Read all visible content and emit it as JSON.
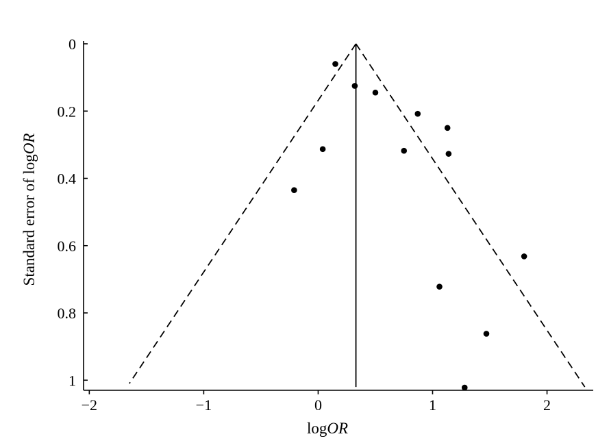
{
  "chart_data": {
    "type": "scatter",
    "subtype": "funnel-plot",
    "title": "",
    "xlabel": {
      "prefix": "log",
      "italic": "OR"
    },
    "ylabel": {
      "prefix": "Standard error of log",
      "italic": "OR"
    },
    "xlim": [
      -2.05,
      2.38
    ],
    "ylim": [
      0,
      1.03
    ],
    "y_inverted": true,
    "grid": false,
    "legend": "none",
    "x_ticks": [
      {
        "value": -2,
        "label": "−2"
      },
      {
        "value": -1,
        "label": "−1"
      },
      {
        "value": 0,
        "label": "0"
      },
      {
        "value": 1,
        "label": "1"
      },
      {
        "value": 2,
        "label": "2"
      }
    ],
    "y_ticks": [
      {
        "value": 0,
        "label": "0"
      },
      {
        "value": 0.2,
        "label": "0.2"
      },
      {
        "value": 0.4,
        "label": "0.4"
      },
      {
        "value": 0.6,
        "label": "0.6"
      },
      {
        "value": 0.8,
        "label": "0.8"
      },
      {
        "value": 1,
        "label": "1"
      }
    ],
    "pooled_estimate": 0.33,
    "pooled_line_range": [
      0,
      1.02
    ],
    "confidence_limits": {
      "apex": [
        0.33,
        0
      ],
      "left_end": [
        -1.65,
        1.01
      ],
      "right_end": [
        2.33,
        1.02
      ],
      "style": "dashed"
    },
    "points": [
      {
        "x": 0.15,
        "y": 0.06
      },
      {
        "x": 0.32,
        "y": 0.125
      },
      {
        "x": 0.5,
        "y": 0.145
      },
      {
        "x": 0.87,
        "y": 0.208
      },
      {
        "x": 1.13,
        "y": 0.25
      },
      {
        "x": 1.14,
        "y": 0.327
      },
      {
        "x": 0.75,
        "y": 0.318
      },
      {
        "x": 0.04,
        "y": 0.313
      },
      {
        "x": -0.21,
        "y": 0.435
      },
      {
        "x": 1.8,
        "y": 0.632
      },
      {
        "x": 1.06,
        "y": 0.722
      },
      {
        "x": 1.47,
        "y": 0.862
      },
      {
        "x": 1.28,
        "y": 1.022
      }
    ],
    "colors": {
      "marks": "#000000",
      "background": "#ffffff"
    }
  }
}
